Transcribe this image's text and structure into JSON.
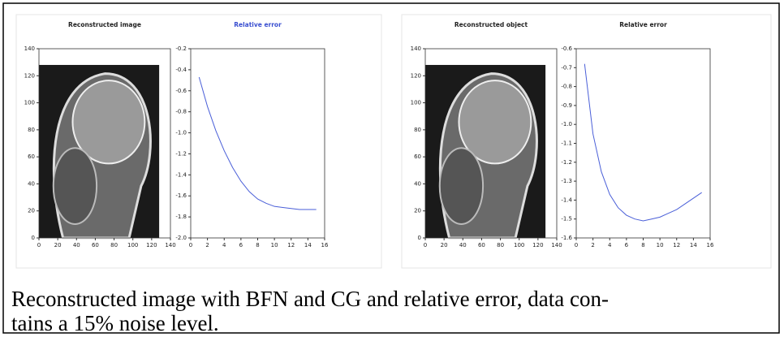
{
  "chart_data": [
    {
      "type": "image",
      "title": "Reconstructed image",
      "title_color": "#222222",
      "xlim": [
        0,
        140
      ],
      "ylim": [
        0,
        140
      ],
      "xticks": [
        0,
        20,
        40,
        60,
        80,
        100,
        120,
        140
      ],
      "yticks": [
        0,
        20,
        40,
        60,
        80,
        100,
        120,
        140
      ],
      "image_extent": [
        128,
        128
      ]
    },
    {
      "type": "line",
      "title": "Relative error",
      "title_color": "#3a4fd0",
      "x": [
        1,
        2,
        3,
        4,
        5,
        6,
        7,
        8,
        9,
        10,
        11,
        12,
        13,
        14,
        15
      ],
      "series": [
        {
          "color": "#4a5fd8",
          "values": [
            -0.47,
            -0.75,
            -0.98,
            -1.17,
            -1.33,
            -1.46,
            -1.56,
            -1.63,
            -1.67,
            -1.7,
            -1.71,
            -1.72,
            -1.73,
            -1.73,
            -1.73
          ]
        }
      ],
      "xlim": [
        0,
        16
      ],
      "ylim": [
        -2.0,
        -0.2
      ],
      "xticks": [
        0,
        2,
        4,
        6,
        8,
        10,
        12,
        14,
        16
      ],
      "yticks": [
        {
          "value": -0.2,
          "label": "-0.2"
        },
        {
          "value": -0.4,
          "label": "-0.4"
        },
        {
          "value": -0.6,
          "label": "-0.6"
        },
        {
          "value": -0.8,
          "label": "-0.8"
        },
        {
          "value": -1.0,
          "label": "-1.0"
        },
        {
          "value": -1.2,
          "label": "-1.2"
        },
        {
          "value": -1.4,
          "label": "-1.4"
        },
        {
          "value": -1.6,
          "label": "-1.6"
        },
        {
          "value": -1.8,
          "label": "-1.8"
        },
        {
          "value": -2.0,
          "label": "-2.0"
        }
      ]
    },
    {
      "type": "image",
      "title": "Reconstructed object",
      "title_color": "#222222",
      "xlim": [
        0,
        140
      ],
      "ylim": [
        0,
        140
      ],
      "xticks": [
        0,
        20,
        40,
        60,
        80,
        100,
        120,
        140
      ],
      "yticks": [
        0,
        20,
        40,
        60,
        80,
        100,
        120,
        140
      ],
      "image_extent": [
        128,
        128
      ]
    },
    {
      "type": "line",
      "title": "Relative error",
      "title_color": "#222222",
      "x": [
        1,
        2,
        3,
        4,
        5,
        6,
        7,
        8,
        9,
        10,
        11,
        12,
        13,
        14,
        15
      ],
      "series": [
        {
          "color": "#4a5fd8",
          "values": [
            -0.68,
            -1.05,
            -1.25,
            -1.37,
            -1.44,
            -1.48,
            -1.5,
            -1.51,
            -1.5,
            -1.49,
            -1.47,
            -1.45,
            -1.42,
            -1.39,
            -1.36
          ]
        }
      ],
      "xlim": [
        0,
        16
      ],
      "ylim": [
        -1.6,
        -0.6
      ],
      "xticks": [
        0,
        2,
        4,
        6,
        8,
        10,
        12,
        14,
        16
      ],
      "yticks": [
        {
          "value": -0.6,
          "label": "-0.6"
        },
        {
          "value": -0.7,
          "label": "-0.7"
        },
        {
          "value": -0.8,
          "label": "-0.8"
        },
        {
          "value": -0.9,
          "label": "-0.9"
        },
        {
          "value": -1.0,
          "label": "-1.0"
        },
        {
          "value": -1.1,
          "label": "-1.1"
        },
        {
          "value": -1.2,
          "label": "-1.2"
        },
        {
          "value": -1.3,
          "label": "-1.3"
        },
        {
          "value": -1.4,
          "label": "-1.4"
        },
        {
          "value": -1.5,
          "label": "-1.5"
        },
        {
          "value": -1.6,
          "label": "-1.6"
        }
      ]
    }
  ],
  "caption": [
    "Reconstructed image with BFN and CG and relative error, data con-",
    "tains a 15% noise level."
  ]
}
